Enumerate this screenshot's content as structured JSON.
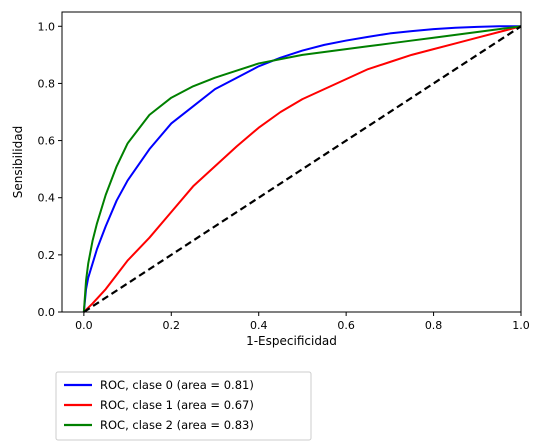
{
  "chart_data": {
    "type": "line",
    "xlabel": "1-Especificidad",
    "ylabel": "Sensibilidad",
    "xlim": [
      -0.05,
      1.0
    ],
    "ylim": [
      0.0,
      1.05
    ],
    "x_ticks": [
      "0.0",
      "0.2",
      "0.4",
      "0.6",
      "0.8",
      "1.0"
    ],
    "y_ticks": [
      "0.0",
      "0.2",
      "0.4",
      "0.6",
      "0.8",
      "1.0"
    ],
    "grid": false,
    "legend_position": "below",
    "series": [
      {
        "name": "ROC, clase 0 (area = 0.81)",
        "color": "#0000ff",
        "x": [
          0.0,
          0.005,
          0.01,
          0.02,
          0.03,
          0.05,
          0.075,
          0.1,
          0.15,
          0.2,
          0.25,
          0.3,
          0.35,
          0.4,
          0.45,
          0.5,
          0.55,
          0.6,
          0.65,
          0.7,
          0.75,
          0.8,
          0.85,
          0.9,
          0.95,
          1.0
        ],
        "y": [
          0.0,
          0.08,
          0.12,
          0.17,
          0.22,
          0.3,
          0.39,
          0.46,
          0.57,
          0.66,
          0.72,
          0.78,
          0.82,
          0.86,
          0.89,
          0.915,
          0.935,
          0.95,
          0.963,
          0.975,
          0.983,
          0.99,
          0.995,
          0.998,
          1.0,
          1.0
        ]
      },
      {
        "name": "ROC, clase 1 (area = 0.67)",
        "color": "#ff0000",
        "x": [
          0.0,
          0.02,
          0.05,
          0.075,
          0.1,
          0.15,
          0.2,
          0.25,
          0.3,
          0.35,
          0.4,
          0.45,
          0.5,
          0.55,
          0.6,
          0.65,
          0.7,
          0.75,
          0.8,
          0.85,
          0.9,
          0.95,
          1.0
        ],
        "y": [
          0.0,
          0.03,
          0.08,
          0.13,
          0.18,
          0.26,
          0.35,
          0.44,
          0.51,
          0.58,
          0.645,
          0.7,
          0.745,
          0.78,
          0.815,
          0.85,
          0.875,
          0.9,
          0.92,
          0.94,
          0.96,
          0.98,
          1.0
        ]
      },
      {
        "name": "ROC, clase 2 (area = 0.83)",
        "color": "#008000",
        "x": [
          0.0,
          0.005,
          0.01,
          0.02,
          0.03,
          0.05,
          0.075,
          0.1,
          0.15,
          0.2,
          0.25,
          0.3,
          0.35,
          0.4,
          0.45,
          0.5,
          0.55,
          0.6,
          0.65,
          0.7,
          0.75,
          0.8,
          0.85,
          0.9,
          0.95,
          1.0
        ],
        "y": [
          0.0,
          0.11,
          0.17,
          0.25,
          0.31,
          0.41,
          0.51,
          0.59,
          0.69,
          0.75,
          0.79,
          0.82,
          0.845,
          0.87,
          0.885,
          0.9,
          0.91,
          0.92,
          0.93,
          0.94,
          0.95,
          0.96,
          0.97,
          0.98,
          0.99,
          1.0
        ]
      },
      {
        "name": "",
        "color": "#000000",
        "dashed": true,
        "x": [
          0.0,
          1.0
        ],
        "y": [
          0.0,
          1.0
        ]
      }
    ]
  }
}
